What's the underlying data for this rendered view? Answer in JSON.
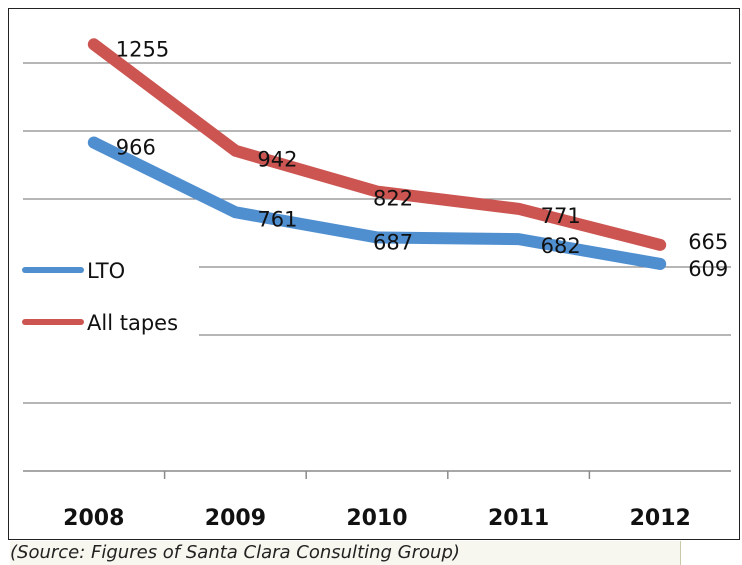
{
  "chart_data": {
    "type": "line",
    "title": "",
    "xlabel": "",
    "ylabel": "",
    "categories": [
      "2008",
      "2009",
      "2010",
      "2011",
      "2012"
    ],
    "ylim": [
      0,
      1400
    ],
    "grid": true,
    "legend_position": "left-middle",
    "series": [
      {
        "name": "LTO",
        "values": [
          966,
          761,
          687,
          682,
          609
        ],
        "color": "#4f8fd0"
      },
      {
        "name": "All tapes",
        "values": [
          1255,
          942,
          822,
          771,
          665
        ],
        "color": "#cc5551"
      }
    ]
  },
  "source": "(Source: Figures of Santa Clara Consulting Group)"
}
